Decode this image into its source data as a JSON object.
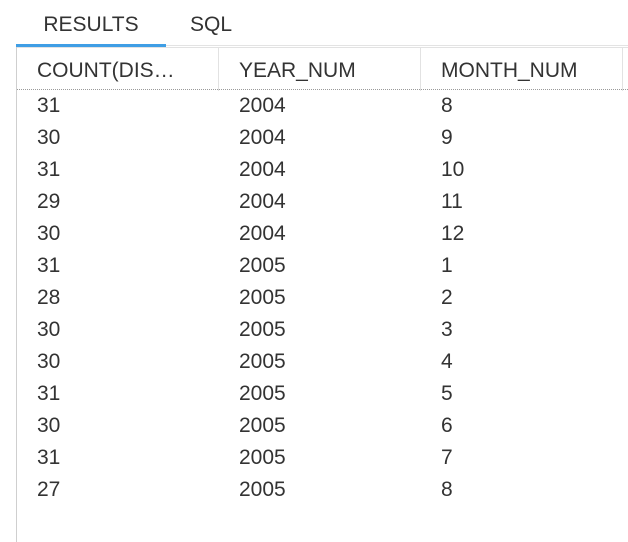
{
  "tabs": [
    {
      "label": "RESULTS",
      "active": true
    },
    {
      "label": "SQL",
      "active": false
    }
  ],
  "colors": {
    "accent": "#3f9ee5",
    "text": "#333333"
  },
  "table": {
    "columns": [
      "COUNT(DIS…",
      "YEAR_NUM",
      "MONTH_NUM"
    ],
    "rows": [
      [
        "31",
        "2004",
        "8"
      ],
      [
        "30",
        "2004",
        "9"
      ],
      [
        "31",
        "2004",
        "10"
      ],
      [
        "29",
        "2004",
        "11"
      ],
      [
        "30",
        "2004",
        "12"
      ],
      [
        "31",
        "2005",
        "1"
      ],
      [
        "28",
        "2005",
        "2"
      ],
      [
        "30",
        "2005",
        "3"
      ],
      [
        "30",
        "2005",
        "4"
      ],
      [
        "31",
        "2005",
        "5"
      ],
      [
        "30",
        "2005",
        "6"
      ],
      [
        "31",
        "2005",
        "7"
      ],
      [
        "27",
        "2005",
        "8"
      ]
    ]
  }
}
